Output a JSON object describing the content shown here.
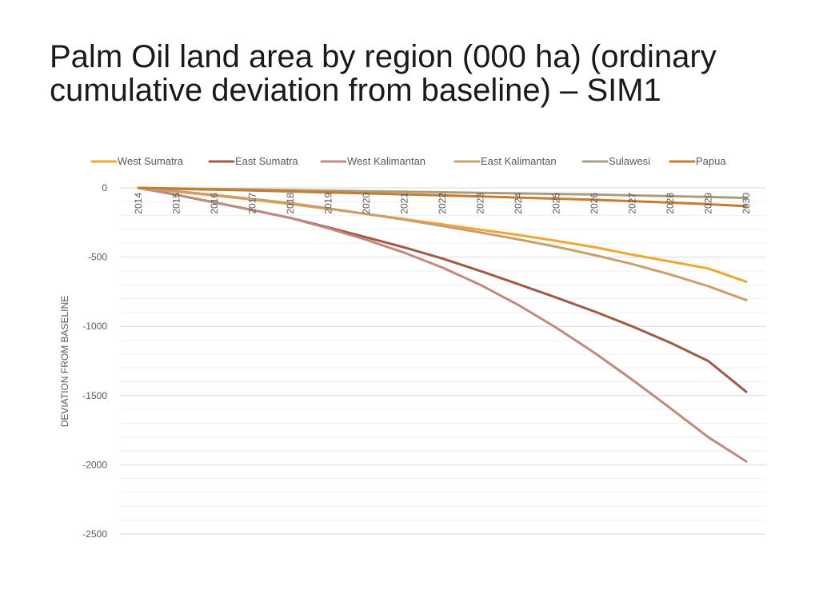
{
  "slide": {
    "title_line1": "Palm Oil land area by region (000 ha) (ordinary",
    "title_line2": "cumulative deviation from baseline) – SIM1"
  },
  "chart_data": {
    "type": "line",
    "title": "Palm Oil land area by region (000 ha) (ordinary cumulative deviation from baseline) – SIM1",
    "xlabel": "",
    "ylabel": "DEVIATION FROM BASELINE",
    "ylim": [
      -2500,
      0
    ],
    "y_ticks": [
      0,
      -500,
      -1000,
      -1500,
      -2000,
      -2500
    ],
    "y_tick_labels": [
      "0",
      "-500",
      "-1000",
      "-1500",
      "-2000",
      "-2500"
    ],
    "grid": true,
    "legend": "top",
    "categories": [
      "2014",
      "2015",
      "2016",
      "2017",
      "2018",
      "2019",
      "2020",
      "2021",
      "2022",
      "2023",
      "2024",
      "2025",
      "2026",
      "2027",
      "2028",
      "2029",
      "2030"
    ],
    "series": [
      {
        "name": "West Sumatra",
        "color": "#F2A530",
        "values": [
          0,
          -27,
          -55,
          -85,
          -117,
          -152,
          -188,
          -225,
          -263,
          -302,
          -340,
          -382,
          -428,
          -482,
          -532,
          -582,
          -678
        ]
      },
      {
        "name": "East Sumatra",
        "color": "#A05A48",
        "values": [
          0,
          -50,
          -105,
          -160,
          -217,
          -285,
          -357,
          -430,
          -510,
          -600,
          -695,
          -792,
          -892,
          -1000,
          -1118,
          -1250,
          -1473
        ]
      },
      {
        "name": "West Kalimantan",
        "color": "#C08A80",
        "values": [
          0,
          -50,
          -105,
          -160,
          -217,
          -292,
          -375,
          -468,
          -575,
          -700,
          -845,
          -1010,
          -1190,
          -1385,
          -1590,
          -1800,
          -1975
        ]
      },
      {
        "name": "East Kalimantan",
        "color": "#C8A070",
        "values": [
          0,
          -25,
          -50,
          -80,
          -110,
          -148,
          -188,
          -230,
          -275,
          -322,
          -372,
          -425,
          -485,
          -550,
          -625,
          -710,
          -810
        ]
      },
      {
        "name": "Sulawesi",
        "color": "#A89E80",
        "values": [
          0,
          -4,
          -8,
          -12,
          -16,
          -20,
          -24,
          -28,
          -32,
          -36,
          -40,
          -44,
          -48,
          -54,
          -60,
          -66,
          -72
        ]
      },
      {
        "name": "Papua",
        "color": "#C87C2C",
        "values": [
          0,
          -7,
          -13,
          -19,
          -26,
          -33,
          -40,
          -47,
          -54,
          -62,
          -70,
          -78,
          -86,
          -96,
          -106,
          -118,
          -132
        ]
      }
    ]
  }
}
